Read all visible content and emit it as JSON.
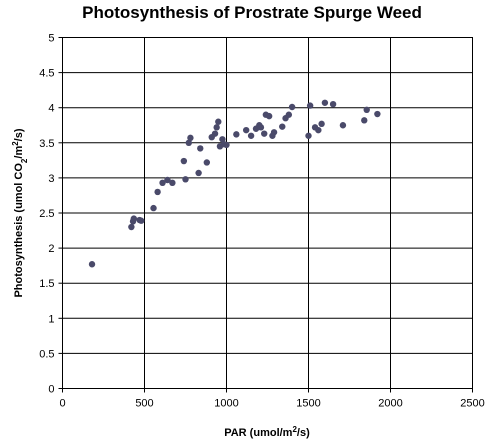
{
  "chart_data": {
    "type": "scatter",
    "title": "Photosynthesis of Prostrate Spurge Weed",
    "xlabel": {
      "pre": "PAR (umol/m",
      "sup": "2",
      "post": "/s)"
    },
    "ylabel": {
      "pre": "Photosynthesis (umol CO",
      "sub": "2",
      "mid": "/m",
      "sup": "2",
      "post": "/s)"
    },
    "xlim": [
      0,
      2500
    ],
    "ylim": [
      0,
      5
    ],
    "xticks": [
      "0",
      "500",
      "1000",
      "1500",
      "2000",
      "2500"
    ],
    "yticks": [
      "0",
      "0.5",
      "1",
      "1.5",
      "2",
      "2.5",
      "3",
      "3.5",
      "4",
      "4.5",
      "5"
    ],
    "grid": true,
    "marker_color": "#4a4a6a",
    "points": [
      [
        180,
        1.77
      ],
      [
        420,
        2.3
      ],
      [
        430,
        2.38
      ],
      [
        435,
        2.42
      ],
      [
        470,
        2.4
      ],
      [
        480,
        2.39
      ],
      [
        555,
        2.57
      ],
      [
        580,
        2.8
      ],
      [
        610,
        2.93
      ],
      [
        640,
        2.97
      ],
      [
        670,
        2.93
      ],
      [
        740,
        3.24
      ],
      [
        750,
        2.98
      ],
      [
        770,
        3.5
      ],
      [
        780,
        3.57
      ],
      [
        830,
        3.07
      ],
      [
        840,
        3.42
      ],
      [
        880,
        3.22
      ],
      [
        910,
        3.58
      ],
      [
        930,
        3.63
      ],
      [
        940,
        3.72
      ],
      [
        950,
        3.8
      ],
      [
        960,
        3.45
      ],
      [
        975,
        3.55
      ],
      [
        985,
        3.48
      ],
      [
        1000,
        3.47
      ],
      [
        1060,
        3.62
      ],
      [
        1120,
        3.68
      ],
      [
        1150,
        3.6
      ],
      [
        1180,
        3.7
      ],
      [
        1200,
        3.75
      ],
      [
        1210,
        3.72
      ],
      [
        1230,
        3.63
      ],
      [
        1240,
        3.9
      ],
      [
        1260,
        3.88
      ],
      [
        1280,
        3.6
      ],
      [
        1290,
        3.65
      ],
      [
        1340,
        3.73
      ],
      [
        1360,
        3.85
      ],
      [
        1380,
        3.9
      ],
      [
        1400,
        4.01
      ],
      [
        1500,
        3.6
      ],
      [
        1510,
        4.03
      ],
      [
        1540,
        3.72
      ],
      [
        1560,
        3.68
      ],
      [
        1580,
        3.77
      ],
      [
        1600,
        4.07
      ],
      [
        1650,
        4.05
      ],
      [
        1710,
        3.75
      ],
      [
        1840,
        3.82
      ],
      [
        1855,
        3.97
      ],
      [
        1920,
        3.91
      ]
    ]
  }
}
